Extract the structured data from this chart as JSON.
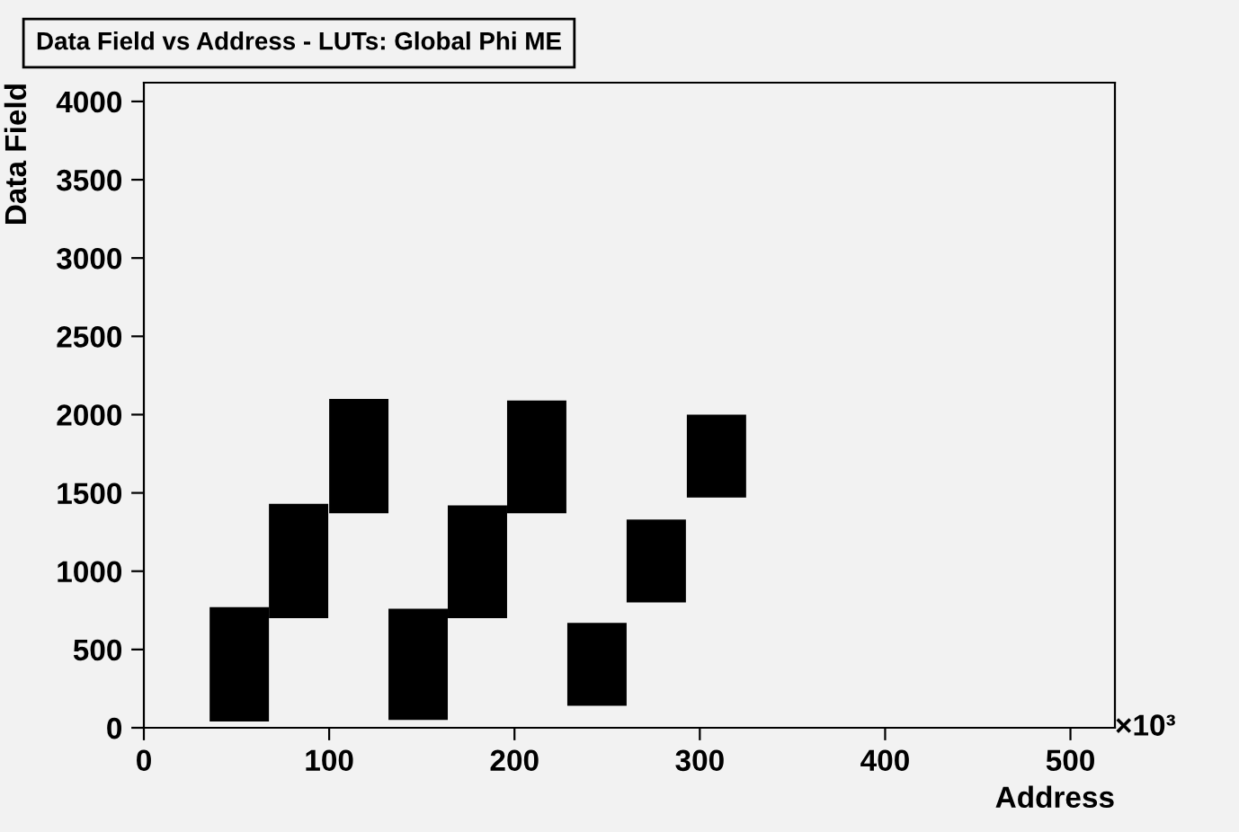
{
  "chart_data": {
    "type": "bar",
    "title": "Data Field vs Address - LUTs: Global Phi ME",
    "xlabel": "Address",
    "ylabel": "Data Field",
    "annotations": [
      "×10³"
    ],
    "x": [
      51.5,
      83.5,
      116,
      148,
      180,
      212,
      244.5,
      276.5,
      309
    ],
    "base": [
      40,
      700,
      1370,
      50,
      700,
      1370,
      140,
      800,
      1470
    ],
    "values": [
      730,
      730,
      730,
      710,
      720,
      720,
      530,
      530,
      530
    ],
    "color": "#000000",
    "xlim": [
      0,
      524
    ],
    "xticks": [
      0,
      100,
      200,
      300,
      400,
      500
    ],
    "ylim": [
      0,
      4120
    ],
    "yticks": [
      0,
      500,
      1000,
      1500,
      2000,
      2500,
      3000,
      3500,
      4000
    ],
    "grid": false,
    "legend": false
  }
}
